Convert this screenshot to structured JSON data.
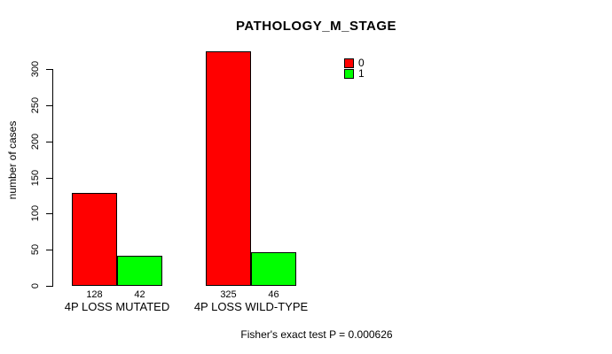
{
  "chart_data": {
    "type": "bar",
    "title": "PATHOLOGY_M_STAGE",
    "ylabel": "number of cases",
    "xlabel": "",
    "categories": [
      "4P LOSS MUTATED",
      "4P LOSS WILD-TYPE"
    ],
    "series": [
      {
        "name": "0",
        "color": "#ff0000",
        "values": [
          128,
          325
        ]
      },
      {
        "name": "1",
        "color": "#00ff00",
        "values": [
          42,
          46
        ]
      }
    ],
    "bar_value_labels": [
      [
        "128",
        "42"
      ],
      [
        "325",
        "46"
      ]
    ],
    "yticks": [
      0,
      50,
      100,
      150,
      200,
      250,
      300
    ],
    "ylim": [
      0,
      325
    ],
    "grid": false,
    "legend_position": "top-right",
    "annotation": "Fisher's exact test P = 0.000626"
  },
  "colors": {
    "background": "#ffffff",
    "axis": "#000000",
    "bar_border": "#000000",
    "series_0": "#ff0000",
    "series_1": "#00ff00"
  }
}
